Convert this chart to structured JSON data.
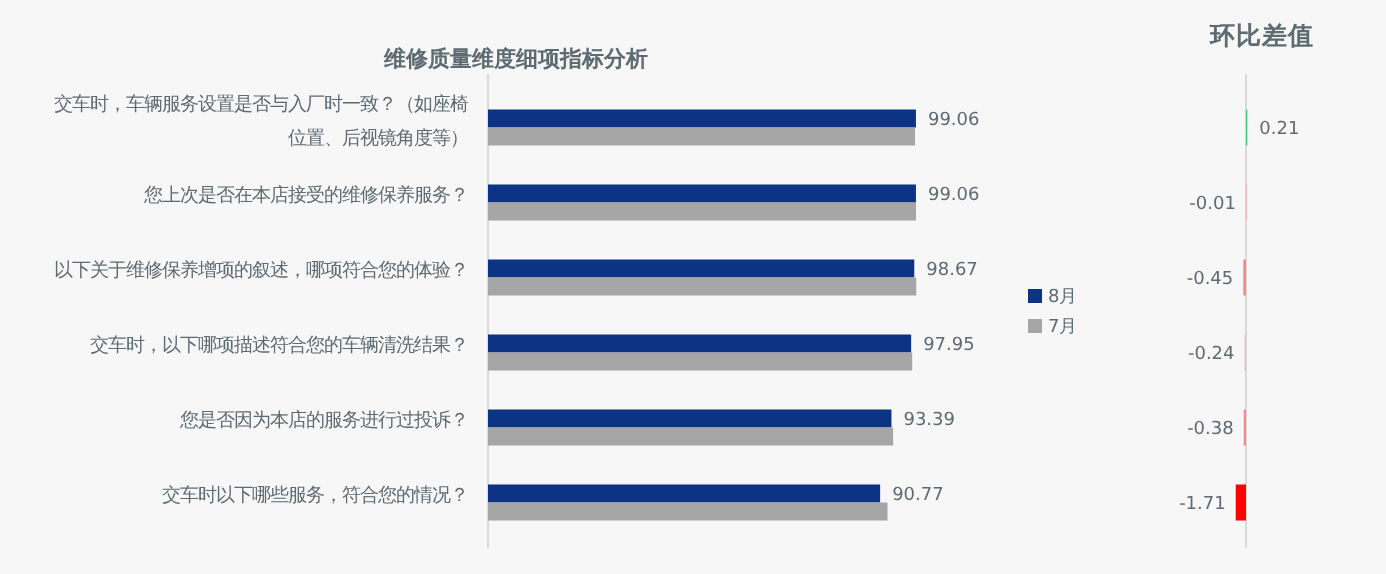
{
  "chart_data": [
    {
      "type": "bar",
      "orientation": "horizontal",
      "title": "维修质量维度细项指标分析",
      "categories": [
        "交车时，车辆服务设置是否与入厂时一致？（如座椅位置、后视镜角度等）",
        "您上次是否在本店接受的维修保养服务？",
        "以下关于维修保养增项的叙述，哪项符合您的体验？",
        "交车时，以下哪项描述符合您的车辆清洗结果？",
        "您是否因为本店的服务进行过投诉？",
        "交车时以下哪些服务，符合您的情况？"
      ],
      "tick_labels": "y",
      "legend": "right",
      "series": [
        {
          "name": "8月",
          "color": "#0d3384",
          "values": [
            99.06,
            99.06,
            98.67,
            97.95,
            93.39,
            90.77
          ],
          "value_labels": [
            "99.06",
            "99.06",
            "98.67",
            "97.95",
            "93.39",
            "90.77"
          ]
        },
        {
          "name": "7月",
          "color": "#a6a6a6",
          "values": [
            98.85,
            99.07,
            99.12,
            98.19,
            93.77,
            92.48
          ]
        }
      ]
    },
    {
      "type": "bar",
      "orientation": "horizontal",
      "title": "环比差值",
      "categories": [
        null,
        null,
        null,
        null,
        null,
        null
      ],
      "tick_labels": false,
      "data_labels": true,
      "values": [
        0.21,
        -0.01,
        -0.45,
        -0.24,
        -0.38,
        -1.71
      ],
      "colors": [
        "#3cc774",
        "#f4b4b4",
        "#f28b8b",
        "#f6b8b8",
        "#f28b8b",
        "#ff0000"
      ]
    }
  ]
}
